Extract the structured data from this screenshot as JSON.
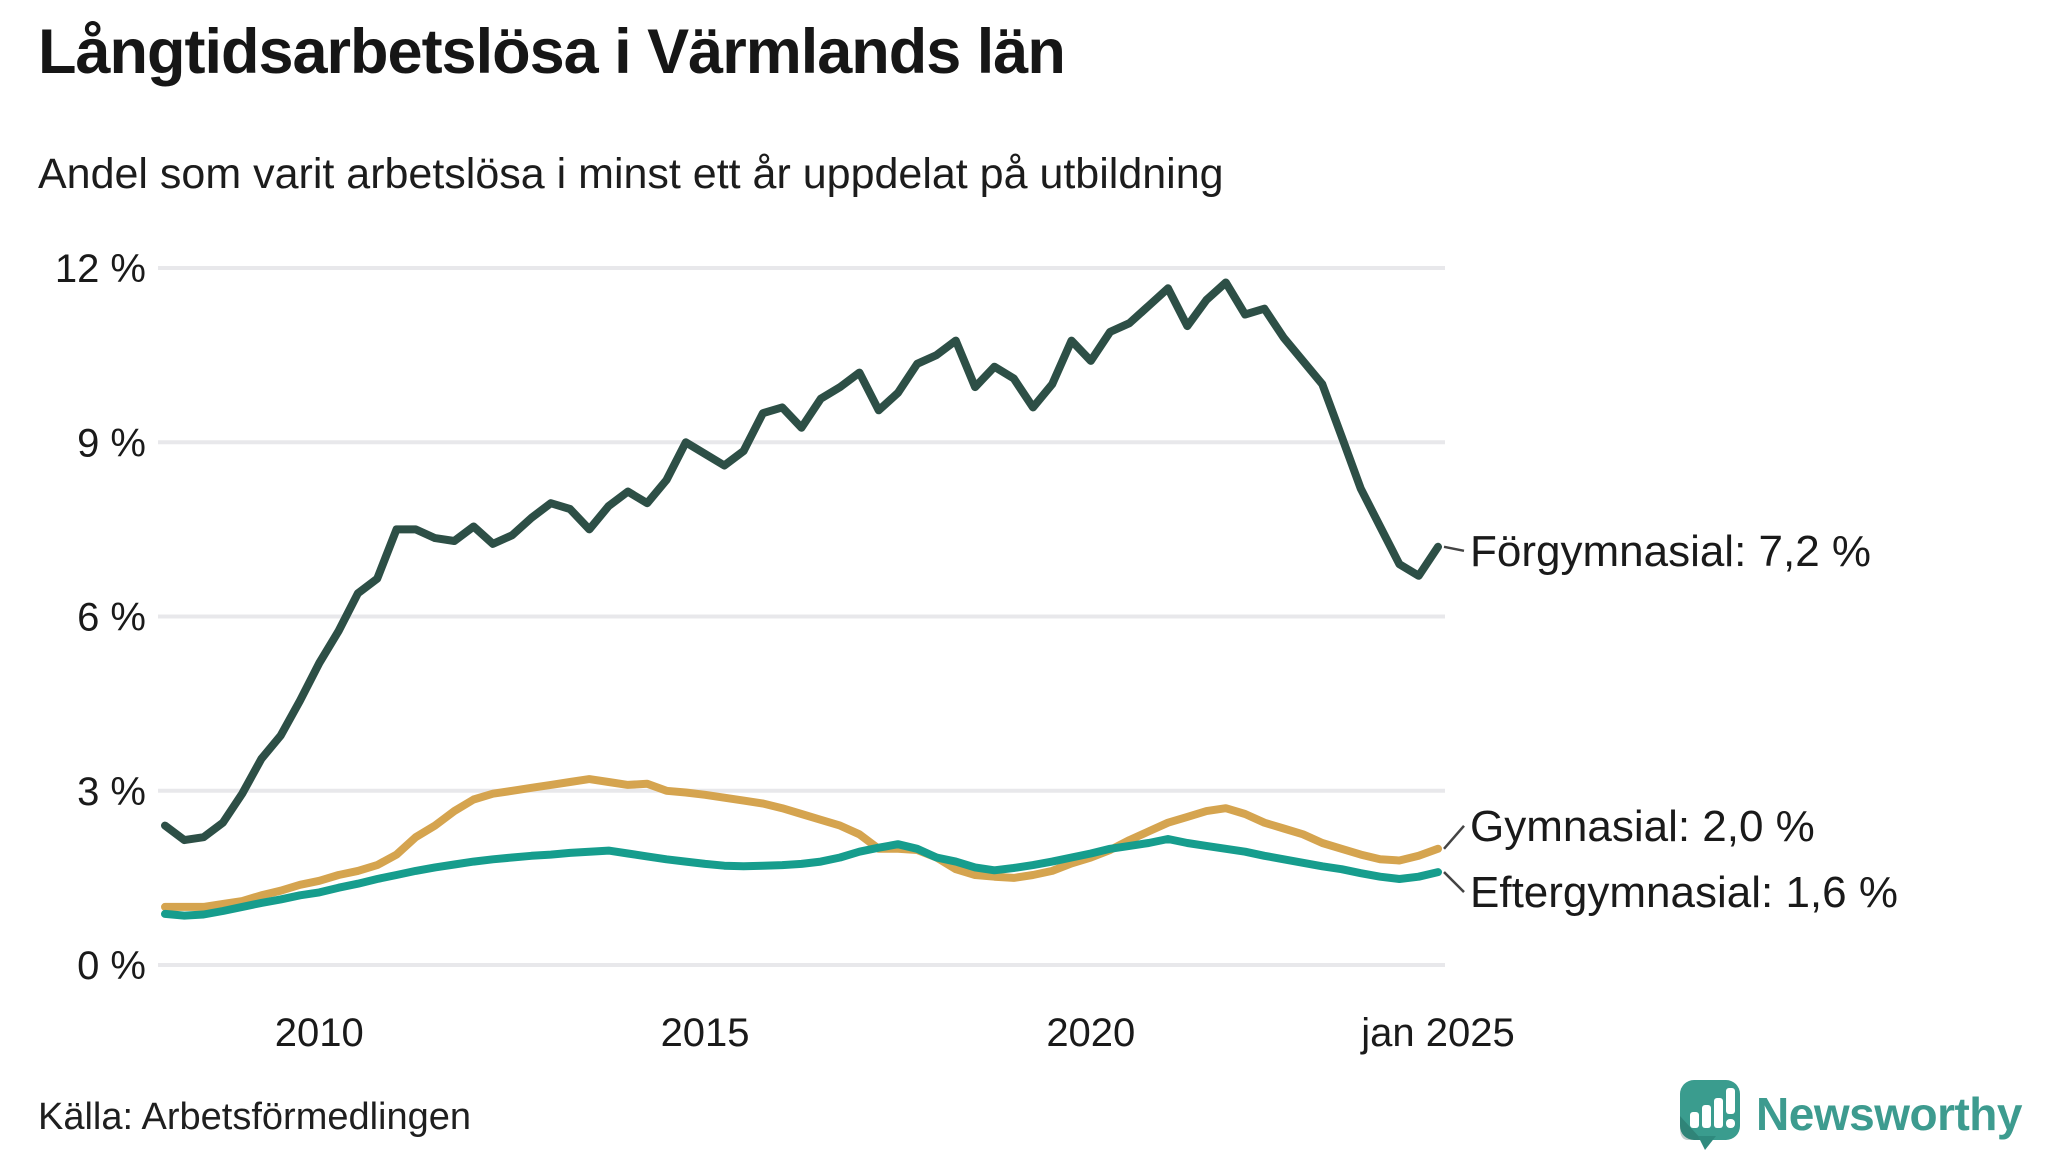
{
  "header": {
    "title": "Långtidsarbetslösa i Värmlands län",
    "subtitle": "Andel som varit arbetslösa i minst ett år uppdelat på utbildning"
  },
  "footer": {
    "source": "Källa: Arbetsförmedlingen",
    "brand": "Newsworthy",
    "brand_color": "#3d9b8f"
  },
  "colors": {
    "gridline": "#e8e8eb",
    "text": "#1a1a1a",
    "connector": "#444444",
    "logo_square": "#3a9c8e",
    "logo_tail": "#2f8a7e",
    "logo_bars": "#ffffff"
  },
  "chart_data": {
    "type": "line",
    "title": "Långtidsarbetslösa i Värmlands län",
    "subtitle": "Andel som varit arbetslösa i minst ett år uppdelat på utbildning",
    "xlabel": "",
    "ylabel": "%",
    "x_unit": "months since Jul 2008 (0 = jul 2008, 198 = jan 2025)",
    "ylim": [
      0,
      12
    ],
    "grid": true,
    "legend_position": "end-of-line labels, right side",
    "x_ticks": [
      {
        "pos": 24,
        "label": "2010"
      },
      {
        "pos": 84,
        "label": "2015"
      },
      {
        "pos": 144,
        "label": "2020"
      },
      {
        "pos": 198,
        "label": "jan 2025"
      }
    ],
    "y_ticks": [
      {
        "value": 0,
        "label": "0 %"
      },
      {
        "value": 3,
        "label": "3 %"
      },
      {
        "value": 6,
        "label": "6 %"
      },
      {
        "value": 9,
        "label": "9 %"
      },
      {
        "value": 12,
        "label": "12 %"
      }
    ],
    "series": [
      {
        "key": "forgymnasial",
        "name": "Förgymnasial",
        "end_label": "Förgymnasial: 7,2 %",
        "end_value": 7.2,
        "color": "#2d4f46",
        "points": [
          [
            0,
            2.4
          ],
          [
            3,
            2.15
          ],
          [
            6,
            2.2
          ],
          [
            9,
            2.45
          ],
          [
            12,
            2.95
          ],
          [
            15,
            3.55
          ],
          [
            18,
            3.95
          ],
          [
            21,
            4.55
          ],
          [
            24,
            5.2
          ],
          [
            27,
            5.75
          ],
          [
            30,
            6.4
          ],
          [
            33,
            6.65
          ],
          [
            36,
            7.5
          ],
          [
            39,
            7.5
          ],
          [
            42,
            7.35
          ],
          [
            45,
            7.3
          ],
          [
            48,
            7.55
          ],
          [
            51,
            7.25
          ],
          [
            54,
            7.4
          ],
          [
            57,
            7.7
          ],
          [
            60,
            7.95
          ],
          [
            63,
            7.85
          ],
          [
            66,
            7.5
          ],
          [
            69,
            7.9
          ],
          [
            72,
            8.15
          ],
          [
            75,
            7.95
          ],
          [
            78,
            8.35
          ],
          [
            81,
            9.0
          ],
          [
            84,
            8.8
          ],
          [
            87,
            8.6
          ],
          [
            90,
            8.85
          ],
          [
            93,
            9.5
          ],
          [
            96,
            9.6
          ],
          [
            99,
            9.25
          ],
          [
            102,
            9.75
          ],
          [
            105,
            9.95
          ],
          [
            108,
            10.2
          ],
          [
            111,
            9.55
          ],
          [
            114,
            9.85
          ],
          [
            117,
            10.35
          ],
          [
            120,
            10.5
          ],
          [
            123,
            10.75
          ],
          [
            126,
            9.95
          ],
          [
            129,
            10.3
          ],
          [
            132,
            10.1
          ],
          [
            135,
            9.6
          ],
          [
            138,
            10.0
          ],
          [
            141,
            10.75
          ],
          [
            144,
            10.4
          ],
          [
            147,
            10.9
          ],
          [
            150,
            11.05
          ],
          [
            153,
            11.35
          ],
          [
            156,
            11.65
          ],
          [
            159,
            11.0
          ],
          [
            162,
            11.45
          ],
          [
            165,
            11.75
          ],
          [
            168,
            11.2
          ],
          [
            171,
            11.3
          ],
          [
            174,
            10.8
          ],
          [
            177,
            10.4
          ],
          [
            180,
            10.0
          ],
          [
            183,
            9.1
          ],
          [
            186,
            8.2
          ],
          [
            189,
            7.55
          ],
          [
            192,
            6.9
          ],
          [
            195,
            6.7
          ],
          [
            198,
            7.2
          ]
        ]
      },
      {
        "key": "gymnasial",
        "name": "Gymnasial",
        "end_label": "Gymnasial: 2,0 %",
        "end_value": 2.0,
        "color": "#d5a44f",
        "points": [
          [
            0,
            1.0
          ],
          [
            3,
            1.0
          ],
          [
            6,
            1.0
          ],
          [
            9,
            1.05
          ],
          [
            12,
            1.1
          ],
          [
            15,
            1.2
          ],
          [
            18,
            1.28
          ],
          [
            21,
            1.38
          ],
          [
            24,
            1.45
          ],
          [
            27,
            1.55
          ],
          [
            30,
            1.62
          ],
          [
            33,
            1.72
          ],
          [
            36,
            1.9
          ],
          [
            39,
            2.2
          ],
          [
            42,
            2.4
          ],
          [
            45,
            2.65
          ],
          [
            48,
            2.85
          ],
          [
            51,
            2.95
          ],
          [
            54,
            3.0
          ],
          [
            57,
            3.05
          ],
          [
            60,
            3.1
          ],
          [
            63,
            3.15
          ],
          [
            66,
            3.2
          ],
          [
            69,
            3.15
          ],
          [
            72,
            3.1
          ],
          [
            75,
            3.12
          ],
          [
            78,
            3.0
          ],
          [
            81,
            2.97
          ],
          [
            84,
            2.93
          ],
          [
            87,
            2.88
          ],
          [
            90,
            2.83
          ],
          [
            93,
            2.78
          ],
          [
            96,
            2.7
          ],
          [
            99,
            2.6
          ],
          [
            102,
            2.5
          ],
          [
            105,
            2.4
          ],
          [
            108,
            2.25
          ],
          [
            111,
            2.0
          ],
          [
            114,
            2.0
          ],
          [
            117,
            1.98
          ],
          [
            120,
            1.85
          ],
          [
            123,
            1.65
          ],
          [
            126,
            1.55
          ],
          [
            129,
            1.52
          ],
          [
            132,
            1.5
          ],
          [
            135,
            1.55
          ],
          [
            138,
            1.62
          ],
          [
            141,
            1.75
          ],
          [
            144,
            1.85
          ],
          [
            147,
            1.98
          ],
          [
            150,
            2.15
          ],
          [
            153,
            2.3
          ],
          [
            156,
            2.45
          ],
          [
            159,
            2.55
          ],
          [
            162,
            2.65
          ],
          [
            165,
            2.7
          ],
          [
            168,
            2.6
          ],
          [
            171,
            2.45
          ],
          [
            174,
            2.35
          ],
          [
            177,
            2.25
          ],
          [
            180,
            2.1
          ],
          [
            183,
            2.0
          ],
          [
            186,
            1.9
          ],
          [
            189,
            1.82
          ],
          [
            192,
            1.8
          ],
          [
            195,
            1.88
          ],
          [
            198,
            2.0
          ]
        ]
      },
      {
        "key": "eftergymnasial",
        "name": "Eftergymnasial",
        "end_label": "Eftergymnasial: 1,6 %",
        "end_value": 1.6,
        "color": "#169d8d",
        "points": [
          [
            0,
            0.88
          ],
          [
            3,
            0.85
          ],
          [
            6,
            0.87
          ],
          [
            9,
            0.93
          ],
          [
            12,
            1.0
          ],
          [
            15,
            1.07
          ],
          [
            18,
            1.13
          ],
          [
            21,
            1.2
          ],
          [
            24,
            1.25
          ],
          [
            27,
            1.33
          ],
          [
            30,
            1.4
          ],
          [
            33,
            1.48
          ],
          [
            36,
            1.55
          ],
          [
            39,
            1.62
          ],
          [
            42,
            1.68
          ],
          [
            45,
            1.73
          ],
          [
            48,
            1.78
          ],
          [
            51,
            1.82
          ],
          [
            54,
            1.85
          ],
          [
            57,
            1.88
          ],
          [
            60,
            1.9
          ],
          [
            63,
            1.93
          ],
          [
            66,
            1.95
          ],
          [
            69,
            1.97
          ],
          [
            72,
            1.92
          ],
          [
            75,
            1.87
          ],
          [
            78,
            1.82
          ],
          [
            81,
            1.78
          ],
          [
            84,
            1.74
          ],
          [
            87,
            1.71
          ],
          [
            90,
            1.7
          ],
          [
            93,
            1.71
          ],
          [
            96,
            1.72
          ],
          [
            99,
            1.74
          ],
          [
            102,
            1.78
          ],
          [
            105,
            1.85
          ],
          [
            108,
            1.95
          ],
          [
            111,
            2.02
          ],
          [
            114,
            2.08
          ],
          [
            117,
            2.0
          ],
          [
            120,
            1.85
          ],
          [
            123,
            1.78
          ],
          [
            126,
            1.68
          ],
          [
            129,
            1.63
          ],
          [
            132,
            1.67
          ],
          [
            135,
            1.72
          ],
          [
            138,
            1.78
          ],
          [
            141,
            1.85
          ],
          [
            144,
            1.92
          ],
          [
            147,
            2.0
          ],
          [
            150,
            2.05
          ],
          [
            153,
            2.1
          ],
          [
            156,
            2.17
          ],
          [
            159,
            2.1
          ],
          [
            162,
            2.05
          ],
          [
            165,
            2.0
          ],
          [
            168,
            1.95
          ],
          [
            171,
            1.88
          ],
          [
            174,
            1.82
          ],
          [
            177,
            1.76
          ],
          [
            180,
            1.7
          ],
          [
            183,
            1.65
          ],
          [
            186,
            1.58
          ],
          [
            189,
            1.52
          ],
          [
            192,
            1.48
          ],
          [
            195,
            1.52
          ],
          [
            198,
            1.6
          ]
        ]
      }
    ]
  }
}
